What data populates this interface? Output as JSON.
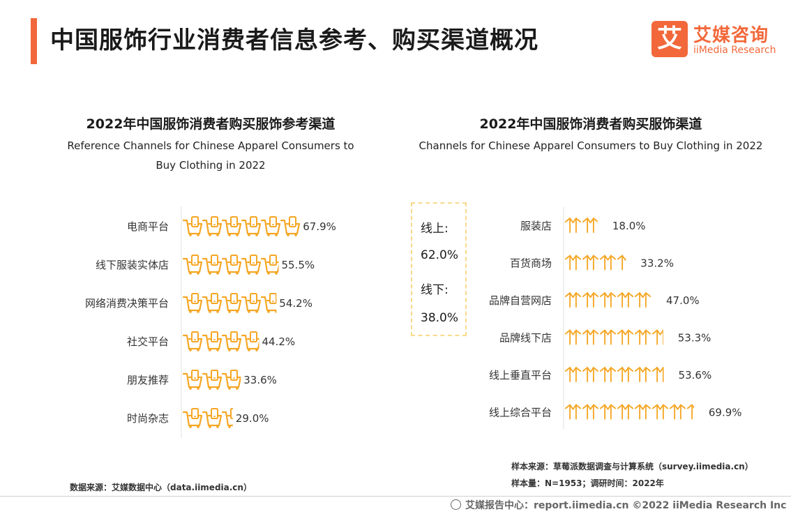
{
  "header": {
    "title": "中国服饰行业消费者信息参考、购买渠道概况",
    "logo_mark": "艾",
    "logo_cn": "艾媒咨询",
    "logo_en": "iiMedia Research",
    "accent_color": "#f2683a"
  },
  "chart_data": [
    {
      "type": "bar",
      "title": "2022年中国服饰消费者购买服饰参考渠道",
      "subtitle": "Reference Channels for Chinese Apparel Consumers to Buy Clothing in 2022",
      "categories": [
        "电商平台",
        "线下服装实体店",
        "网络消费决策平台",
        "社交平台",
        "朋友推荐",
        "时尚杂志"
      ],
      "values": [
        67.9,
        55.5,
        54.2,
        44.2,
        33.6,
        29.0
      ],
      "value_labels": [
        "67.9%",
        "55.5%",
        "54.2%",
        "44.2%",
        "33.6%",
        "29.0%"
      ],
      "unit": "%",
      "orientation": "horizontal",
      "mark": "shopping-cart-icon",
      "color": "#f5a623"
    },
    {
      "type": "bar",
      "title": "2022年中国服饰消费者购买服饰渠道",
      "subtitle": "Channels for Chinese Apparel Consumers to Buy Clothing in 2022",
      "categories": [
        "服装店",
        "百货商场",
        "品牌自营网店",
        "品牌线下店",
        "线上垂直平台",
        "线上综合平台"
      ],
      "values": [
        18.0,
        33.2,
        47.0,
        53.3,
        53.6,
        69.9
      ],
      "value_labels": [
        "18.0%",
        "33.2%",
        "47.0%",
        "53.3%",
        "53.6%",
        "69.9%"
      ],
      "unit": "%",
      "orientation": "horizontal",
      "mark": "shirt-icon",
      "color": "#f5a623"
    }
  ],
  "summary": {
    "online_label": "线上:",
    "online_value": "62.0%",
    "offline_label": "线下:",
    "offline_value": "38.0%"
  },
  "sources": {
    "data_source": "数据来源：艾媒数据中心（data.iimedia.cn）",
    "sample_source": "样本来源：草莓派数据调查与计算系统（survey.iimedia.cn）",
    "sample_size": "样本量：N=1953；调研时间：2022年"
  },
  "footer": {
    "text": "艾媒报告中心：report.iimedia.cn ©2022 iiMedia Research Inc"
  }
}
